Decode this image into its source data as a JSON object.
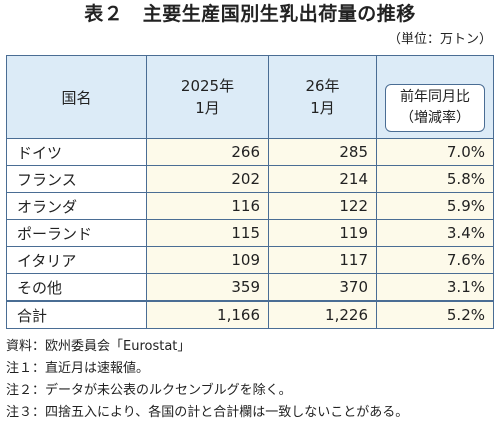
{
  "title": "表２　主要生産国別生乳出荷量の推移",
  "unit": "（単位：万トン）",
  "headers": {
    "country": "国名",
    "col1_line1": "2025年",
    "col1_line2": "1月",
    "col2_line1": "26年",
    "col2_line2": "1月",
    "col3_line1": "前年同月比",
    "col3_line2": "（増減率）"
  },
  "rows": [
    {
      "name": "ドイツ",
      "v2025": "266",
      "v2026": "285",
      "pct": "7.0%"
    },
    {
      "name": "フランス",
      "v2025": "202",
      "v2026": "214",
      "pct": "5.8%"
    },
    {
      "name": "オランダ",
      "v2025": "116",
      "v2026": "122",
      "pct": "5.9%"
    },
    {
      "name": "ポーランド",
      "v2025": "115",
      "v2026": "119",
      "pct": "3.4%"
    },
    {
      "name": "イタリア",
      "v2025": "109",
      "v2026": "117",
      "pct": "7.6%"
    },
    {
      "name": "その他",
      "v2025": "359",
      "v2026": "370",
      "pct": "3.1%"
    },
    {
      "name": "合計",
      "v2025": "1,166",
      "v2026": "1,226",
      "pct": "5.2%"
    }
  ],
  "notes": [
    "資料：欧州委員会「Eurostat」",
    "注１：直近月は速報値。",
    "注２：データが未公表のルクセンブルグを除く。",
    "注３：四捨五入により、各国の計と合計欄は一致しないことがある。"
  ],
  "colors": {
    "header_bg": "#dcebf7",
    "cell_bg": "#fdfaea",
    "border": "#4a6d94"
  }
}
